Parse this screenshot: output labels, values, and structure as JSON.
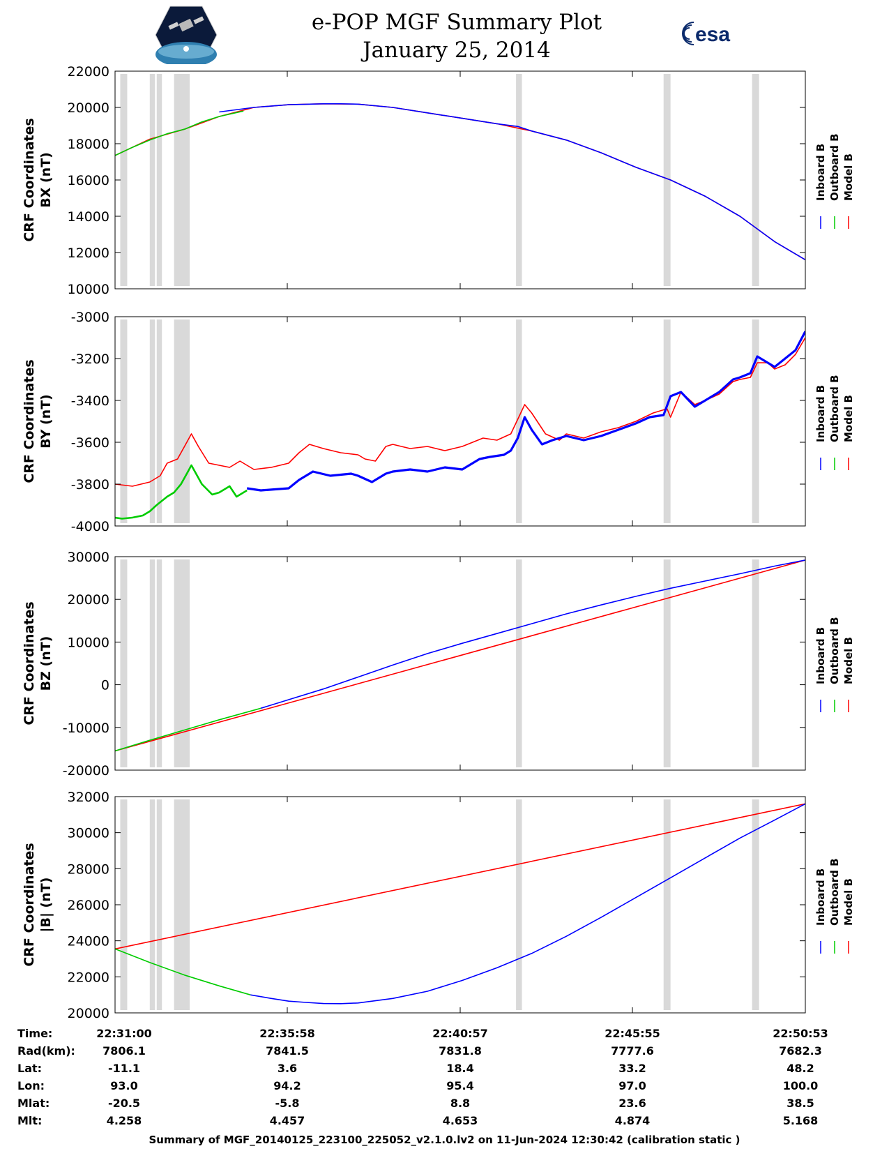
{
  "header": {
    "title_line1": "e-POP MGF Summary Plot",
    "title_line2": "January 25, 2014",
    "logo_left": "cassiope-mission-logo",
    "logo_right_text": "esa"
  },
  "colors": {
    "inboard": "#0000ff",
    "outboard": "#00cc00",
    "model": "#ff0000",
    "gap_band": "#d9d9d9"
  },
  "legend": [
    "Inboard B",
    "Outboard B",
    "Model B"
  ],
  "chart_data": [
    {
      "type": "line",
      "ylabel": [
        "CRF Coordinates",
        "BX (nT)"
      ],
      "ylim": [
        10000,
        22000
      ],
      "yticks": [
        "22000",
        "20000",
        "18000",
        "16000",
        "14000",
        "12000",
        "10000"
      ],
      "xlim": [
        0,
        19.883
      ],
      "xticks": [
        0,
        4.967,
        9.95,
        14.917,
        19.883
      ],
      "gap_bands": [
        [
          0.15,
          0.35
        ],
        [
          1.0,
          1.15
        ],
        [
          1.2,
          1.35
        ],
        [
          1.7,
          2.15
        ],
        [
          11.55,
          11.72
        ],
        [
          15.8,
          16.0
        ],
        [
          18.35,
          18.55
        ]
      ],
      "series": [
        {
          "name": "Inboard B",
          "key": "inboard",
          "x": [
            3.0,
            4.0,
            5.0,
            6.0,
            6.5,
            7.0,
            8.0,
            9.0,
            10.0,
            11.0,
            11.6,
            12.0,
            13.0,
            14.0,
            15.0,
            16.0,
            17.0,
            18.0,
            19.0,
            19.883
          ],
          "values": [
            19750,
            20000,
            20150,
            20200,
            20200,
            20180,
            20000,
            19700,
            19400,
            19100,
            18950,
            18700,
            18200,
            17500,
            16700,
            16000,
            15100,
            14000,
            12600,
            11600
          ]
        },
        {
          "name": "Outboard B",
          "key": "outboard",
          "x": [
            0,
            0.5,
            1.0,
            1.5,
            2.0,
            2.5,
            3.0,
            3.7
          ],
          "values": [
            17350,
            17800,
            18200,
            18550,
            18800,
            19200,
            19500,
            19800
          ]
        },
        {
          "name": "Model B",
          "key": "model",
          "x": [
            0,
            1.0,
            2.0,
            3.0,
            4.0,
            5.0,
            6.0,
            7.0,
            8.0,
            9.0,
            10.0,
            11.0,
            12.0,
            13.0,
            14.0,
            15.0,
            16.0,
            17.0,
            18.0,
            19.0,
            19.883
          ],
          "values": [
            17350,
            18250,
            18800,
            19500,
            20000,
            20150,
            20200,
            20180,
            20000,
            19700,
            19400,
            19100,
            18700,
            18200,
            17500,
            16700,
            16000,
            15100,
            14000,
            12600,
            11600
          ]
        }
      ]
    },
    {
      "type": "line",
      "ylabel": [
        "CRF Coordinates",
        "BY (nT)"
      ],
      "ylim": [
        -4000,
        -3000
      ],
      "yticks": [
        "-3000",
        "-3200",
        "-3400",
        "-3600",
        "-3800",
        "-4000"
      ],
      "xlim": [
        0,
        19.883
      ],
      "xticks": [
        0,
        4.967,
        9.95,
        14.917,
        19.883
      ],
      "gap_bands": [
        [
          0.15,
          0.35
        ],
        [
          1.0,
          1.15
        ],
        [
          1.2,
          1.35
        ],
        [
          1.7,
          2.15
        ],
        [
          11.55,
          11.72
        ],
        [
          15.8,
          16.0
        ],
        [
          18.35,
          18.55
        ]
      ],
      "series": [
        {
          "name": "Inboard B",
          "key": "inboard",
          "x": [
            3.8,
            4.2,
            4.6,
            5.0,
            5.3,
            5.7,
            6.2,
            6.8,
            7.0,
            7.4,
            7.8,
            8.0,
            8.5,
            9.0,
            9.5,
            10.0,
            10.5,
            10.8,
            11.2,
            11.4,
            11.6,
            11.8,
            12.0,
            12.3,
            12.6,
            13.0,
            13.5,
            14.0,
            14.5,
            15.0,
            15.4,
            15.8,
            16.0,
            16.3,
            16.7,
            17.0,
            17.4,
            17.8,
            18.0,
            18.3,
            18.5,
            18.8,
            19.0,
            19.3,
            19.6,
            19.883
          ],
          "values": [
            -3820,
            -3830,
            -3825,
            -3820,
            -3780,
            -3740,
            -3760,
            -3750,
            -3760,
            -3790,
            -3750,
            -3740,
            -3730,
            -3740,
            -3720,
            -3730,
            -3680,
            -3670,
            -3660,
            -3640,
            -3580,
            -3480,
            -3540,
            -3610,
            -3590,
            -3570,
            -3590,
            -3570,
            -3540,
            -3510,
            -3480,
            -3470,
            -3380,
            -3360,
            -3430,
            -3400,
            -3360,
            -3300,
            -3290,
            -3270,
            -3190,
            -3220,
            -3240,
            -3200,
            -3160,
            -3070
          ]
        },
        {
          "name": "Outboard B",
          "key": "outboard",
          "x": [
            0,
            0.2,
            0.5,
            0.8,
            1.0,
            1.2,
            1.5,
            1.7,
            1.9,
            2.1,
            2.2,
            2.5,
            2.8,
            3.0,
            3.3,
            3.5,
            3.8
          ],
          "values": [
            -3960,
            -3965,
            -3960,
            -3950,
            -3930,
            -3900,
            -3860,
            -3840,
            -3800,
            -3740,
            -3710,
            -3800,
            -3850,
            -3840,
            -3810,
            -3860,
            -3830
          ]
        },
        {
          "name": "Model B",
          "key": "model",
          "x": [
            0,
            0.5,
            1.0,
            1.3,
            1.5,
            1.8,
            2.0,
            2.2,
            2.4,
            2.7,
            3.0,
            3.3,
            3.6,
            4.0,
            4.5,
            5.0,
            5.3,
            5.6,
            6.0,
            6.5,
            7.0,
            7.2,
            7.5,
            7.8,
            8.0,
            8.5,
            9.0,
            9.5,
            10.0,
            10.3,
            10.6,
            11.0,
            11.4,
            11.6,
            11.8,
            12.0,
            12.4,
            12.8,
            13.0,
            13.5,
            14.0,
            14.5,
            15.0,
            15.5,
            15.9,
            16.0,
            16.3,
            16.7,
            17.0,
            17.4,
            17.8,
            18.0,
            18.3,
            18.5,
            18.8,
            19.0,
            19.3,
            19.6,
            19.883
          ],
          "values": [
            -3800,
            -3810,
            -3790,
            -3760,
            -3700,
            -3680,
            -3620,
            -3560,
            -3620,
            -3700,
            -3710,
            -3720,
            -3690,
            -3730,
            -3720,
            -3700,
            -3650,
            -3610,
            -3630,
            -3650,
            -3660,
            -3680,
            -3690,
            -3620,
            -3610,
            -3630,
            -3620,
            -3640,
            -3620,
            -3600,
            -3580,
            -3590,
            -3560,
            -3490,
            -3420,
            -3460,
            -3560,
            -3590,
            -3560,
            -3580,
            -3550,
            -3530,
            -3500,
            -3460,
            -3440,
            -3480,
            -3360,
            -3420,
            -3400,
            -3370,
            -3310,
            -3300,
            -3290,
            -3220,
            -3220,
            -3250,
            -3230,
            -3180,
            -3100
          ]
        }
      ]
    },
    {
      "type": "line",
      "ylabel": [
        "CRF Coordinates",
        "BZ (nT)"
      ],
      "ylim": [
        -20000,
        30000
      ],
      "yticks": [
        "30000",
        "20000",
        "10000",
        "0",
        "-10000",
        "-20000"
      ],
      "xlim": [
        0,
        19.883
      ],
      "xticks": [
        0,
        4.967,
        9.95,
        14.917,
        19.883
      ],
      "gap_bands": [
        [
          0.15,
          0.35
        ],
        [
          1.0,
          1.15
        ],
        [
          1.2,
          1.35
        ],
        [
          1.7,
          2.15
        ],
        [
          11.55,
          11.72
        ],
        [
          15.8,
          16.0
        ],
        [
          18.35,
          18.55
        ]
      ],
      "series": [
        {
          "name": "Inboard B",
          "key": "inboard",
          "x": [
            4.2,
            5.0,
            6.0,
            7.0,
            8.0,
            9.0,
            10.0,
            11.0,
            12.0,
            13.0,
            14.0,
            15.0,
            16.0,
            17.0,
            18.0,
            19.0,
            19.883
          ],
          "values": [
            -5500,
            -3500,
            -1000,
            1800,
            4600,
            7300,
            9700,
            12000,
            14300,
            16600,
            18700,
            20700,
            22600,
            24300,
            26000,
            27800,
            29200
          ]
        },
        {
          "name": "Outboard B",
          "key": "outboard",
          "x": [
            0,
            1.0,
            2.0,
            3.0,
            4.2
          ],
          "values": [
            -15500,
            -13000,
            -10600,
            -8200,
            -5500
          ]
        },
        {
          "name": "Model B",
          "key": "model",
          "x": [
            0,
            19.883
          ],
          "values": [
            -15500,
            29200
          ]
        }
      ]
    },
    {
      "type": "line",
      "ylabel": [
        "CRF Coordinates",
        "|B| (nT)"
      ],
      "ylim": [
        20000,
        32000
      ],
      "yticks": [
        "32000",
        "30000",
        "28000",
        "26000",
        "24000",
        "22000",
        "20000"
      ],
      "xlim": [
        0,
        19.883
      ],
      "xticks": [
        0,
        4.967,
        9.95,
        14.917,
        19.883
      ],
      "gap_bands": [
        [
          0.15,
          0.35
        ],
        [
          1.0,
          1.15
        ],
        [
          1.2,
          1.35
        ],
        [
          1.7,
          2.15
        ],
        [
          11.55,
          11.72
        ],
        [
          15.8,
          16.0
        ],
        [
          18.35,
          18.55
        ]
      ],
      "series": [
        {
          "name": "Inboard B",
          "key": "inboard",
          "x": [
            3.9,
            4.5,
            5.0,
            5.5,
            6.0,
            6.5,
            7.0,
            8.0,
            9.0,
            10.0,
            11.0,
            12.0,
            13.0,
            14.0,
            15.0,
            16.0,
            17.0,
            18.0,
            19.0,
            19.883
          ],
          "values": [
            21000,
            20800,
            20650,
            20580,
            20520,
            20510,
            20550,
            20800,
            21200,
            21800,
            22500,
            23300,
            24250,
            25300,
            26400,
            27500,
            28600,
            29700,
            30700,
            31600
          ]
        },
        {
          "name": "Outboard B",
          "key": "outboard",
          "x": [
            0,
            1.0,
            2.0,
            3.0,
            3.9
          ],
          "values": [
            23550,
            22800,
            22100,
            21500,
            21000
          ]
        },
        {
          "name": "Model B",
          "key": "model",
          "x": [
            0,
            19.883
          ],
          "values": [
            23550,
            31600
          ]
        }
      ]
    }
  ],
  "ephemeris": {
    "labels": [
      "Time:",
      "Rad(km):",
      "Lat:",
      "Lon:",
      "Mlat:",
      "Mlt:"
    ],
    "columns": [
      [
        "22:31:00",
        "7806.1",
        "-11.1",
        "93.0",
        "-20.5",
        "4.258"
      ],
      [
        "22:35:58",
        "7841.5",
        "3.6",
        "94.2",
        "-5.8",
        "4.457"
      ],
      [
        "22:40:57",
        "7831.8",
        "18.4",
        "95.4",
        "8.8",
        "4.653"
      ],
      [
        "22:45:55",
        "7777.6",
        "33.2",
        "97.0",
        "23.6",
        "4.874"
      ],
      [
        "22:50:53",
        "7682.3",
        "48.2",
        "100.0",
        "38.5",
        "5.168"
      ]
    ]
  },
  "footer": "Summary of MGF_20140125_223100_225052_v2.1.0.lv2 on 11-Jun-2024 12:30:42 (calibration static )"
}
